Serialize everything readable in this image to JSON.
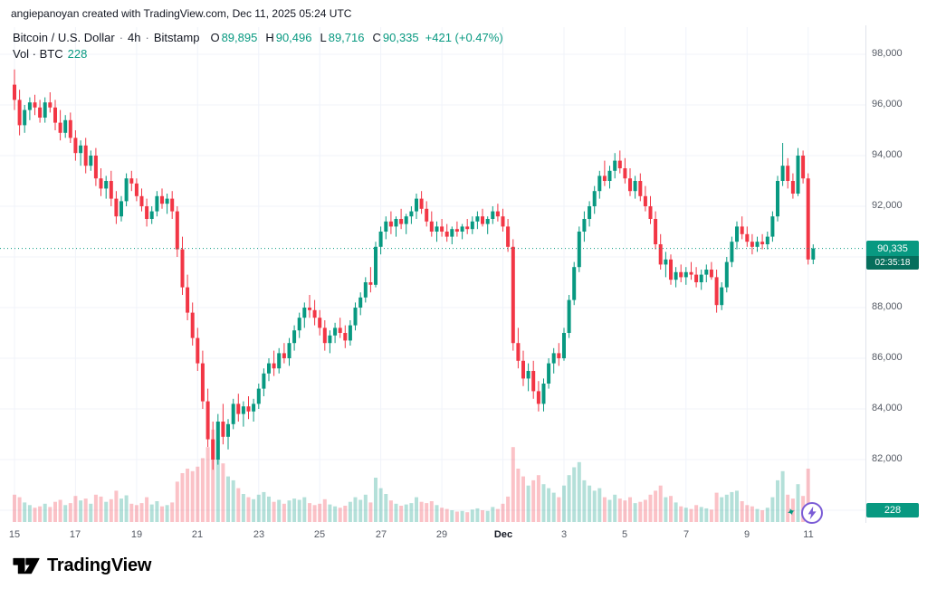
{
  "attribution": "angiepanoyan created with TradingView.com, Dec 11, 2025 05:24 UTC",
  "legend": {
    "title": "Bitcoin / U.S. Dollar",
    "sep1": "·",
    "interval": "4h",
    "sep2": "·",
    "exchange": "Bitstamp",
    "o_label": "O",
    "o": "89,895",
    "h_label": "H",
    "h": "90,496",
    "l_label": "L",
    "l": "89,716",
    "c_label": "C",
    "c": "90,335",
    "change": "+421 (+0.47%)",
    "vol_label": "Vol · BTC",
    "vol_value": "228"
  },
  "price_axis": {
    "labels": [
      "98,000",
      "96,000",
      "94,000",
      "92,000",
      "90,000",
      "88,000",
      "86,000",
      "84,000",
      "82,000",
      "80,000"
    ],
    "current_price": "90,335",
    "countdown": "02:35:18",
    "volume_badge": "228"
  },
  "logo": {
    "text": "TradingView"
  },
  "icons": {
    "flash": "lightning-bolt-circle",
    "sparkle_glyph": "✦"
  },
  "colors": {
    "up": "#089981",
    "down": "#f23645",
    "vol_up": "rgba(8,153,129,0.30)",
    "vol_down": "rgba(242,54,69,0.30)",
    "grid": "#f0f3fa",
    "axis_text": "#555a64",
    "badge_green": "#089981",
    "countdown_bg": "#066e5c"
  },
  "chart_data": {
    "type": "candlestick",
    "title": "Bitcoin / U.S. Dollar · 4h · Bitstamp",
    "interval": "4h",
    "volume_unit": "BTC",
    "last_price": 90335,
    "price_axis_ticks": [
      98000,
      96000,
      94000,
      92000,
      90000,
      88000,
      86000,
      84000,
      82000,
      80000
    ],
    "ylim": [
      79500,
      99000
    ],
    "legend_position": "top-left",
    "grid": true,
    "time_labels": [
      {
        "text": "15",
        "i": 0
      },
      {
        "text": "17",
        "i": 12
      },
      {
        "text": "19",
        "i": 24
      },
      {
        "text": "21",
        "i": 36
      },
      {
        "text": "23",
        "i": 48
      },
      {
        "text": "25",
        "i": 60
      },
      {
        "text": "27",
        "i": 72
      },
      {
        "text": "29",
        "i": 84
      },
      {
        "text": "Dec",
        "i": 96,
        "major": true
      },
      {
        "text": "3",
        "i": 108
      },
      {
        "text": "5",
        "i": 120
      },
      {
        "text": "7",
        "i": 132
      },
      {
        "text": "9",
        "i": 144
      },
      {
        "text": "11",
        "i": 156
      }
    ],
    "candles_format": [
      "open",
      "high",
      "low",
      "close",
      "volume"
    ],
    "candles": [
      [
        96800,
        97400,
        95800,
        96200,
        420
      ],
      [
        96200,
        96600,
        94800,
        95200,
        380
      ],
      [
        95200,
        96000,
        94900,
        95800,
        300
      ],
      [
        95800,
        96300,
        95400,
        96100,
        260
      ],
      [
        96100,
        96400,
        95600,
        95900,
        220
      ],
      [
        95900,
        96200,
        95300,
        95500,
        240
      ],
      [
        95500,
        96300,
        95300,
        96100,
        280
      ],
      [
        96100,
        96500,
        95700,
        95900,
        230
      ],
      [
        95900,
        96200,
        95000,
        95300,
        310
      ],
      [
        95300,
        95800,
        94600,
        94900,
        340
      ],
      [
        94900,
        95600,
        94700,
        95400,
        260
      ],
      [
        95400,
        95700,
        94500,
        94700,
        290
      ],
      [
        94700,
        95000,
        93800,
        94100,
        400
      ],
      [
        94100,
        94600,
        93600,
        94400,
        330
      ],
      [
        94400,
        94700,
        93300,
        93600,
        360
      ],
      [
        93600,
        94200,
        93400,
        94000,
        280
      ],
      [
        94000,
        94300,
        92800,
        93100,
        420
      ],
      [
        93100,
        93500,
        92400,
        92700,
        390
      ],
      [
        92700,
        93200,
        92300,
        93000,
        310
      ],
      [
        93000,
        93400,
        92000,
        92300,
        350
      ],
      [
        92300,
        92600,
        91300,
        91600,
        480
      ],
      [
        91600,
        92400,
        91400,
        92200,
        360
      ],
      [
        92200,
        93300,
        92000,
        93100,
        410
      ],
      [
        93100,
        93400,
        92600,
        92900,
        280
      ],
      [
        92900,
        93100,
        92200,
        92400,
        260
      ],
      [
        92400,
        92700,
        91800,
        92000,
        290
      ],
      [
        92000,
        92300,
        91200,
        91500,
        380
      ],
      [
        91500,
        92000,
        91300,
        91800,
        270
      ],
      [
        91800,
        92600,
        91600,
        92400,
        320
      ],
      [
        92400,
        92700,
        91900,
        92100,
        240
      ],
      [
        92100,
        92500,
        91700,
        92300,
        260
      ],
      [
        92300,
        92600,
        91500,
        91800,
        300
      ],
      [
        91800,
        92000,
        90000,
        90300,
        620
      ],
      [
        90300,
        90800,
        88500,
        88800,
        750
      ],
      [
        88800,
        89300,
        87500,
        87800,
        820
      ],
      [
        87800,
        88200,
        86500,
        86800,
        780
      ],
      [
        86800,
        87200,
        85500,
        85800,
        850
      ],
      [
        85800,
        86300,
        84000,
        84300,
        980
      ],
      [
        84300,
        84800,
        82500,
        82800,
        1150
      ],
      [
        82800,
        83500,
        81600,
        82000,
        1420
      ],
      [
        82000,
        83800,
        81800,
        83500,
        1250
      ],
      [
        83500,
        84200,
        82600,
        82900,
        900
      ],
      [
        82900,
        83600,
        82400,
        83400,
        700
      ],
      [
        83400,
        84400,
        83200,
        84200,
        640
      ],
      [
        84200,
        84600,
        83500,
        83800,
        520
      ],
      [
        83800,
        84300,
        83300,
        84100,
        430
      ],
      [
        84100,
        84500,
        83600,
        83900,
        380
      ],
      [
        83900,
        84400,
        83500,
        84200,
        350
      ],
      [
        84200,
        85000,
        84000,
        84800,
        420
      ],
      [
        84800,
        85600,
        84500,
        85400,
        460
      ],
      [
        85400,
        86000,
        85100,
        85800,
        390
      ],
      [
        85800,
        86300,
        85300,
        85600,
        310
      ],
      [
        85600,
        86400,
        85400,
        86200,
        340
      ],
      [
        86200,
        86600,
        85800,
        86000,
        280
      ],
      [
        86000,
        86800,
        85700,
        86600,
        330
      ],
      [
        86600,
        87300,
        86300,
        87100,
        360
      ],
      [
        87100,
        87800,
        86800,
        87600,
        340
      ],
      [
        87600,
        88200,
        87200,
        88000,
        380
      ],
      [
        88000,
        88500,
        87600,
        87900,
        290
      ],
      [
        87900,
        88300,
        87300,
        87600,
        260
      ],
      [
        87600,
        87900,
        86900,
        87200,
        280
      ],
      [
        87200,
        87500,
        86300,
        86600,
        350
      ],
      [
        86600,
        87100,
        86200,
        86900,
        270
      ],
      [
        86900,
        87400,
        86600,
        87200,
        240
      ],
      [
        87200,
        87600,
        86800,
        87000,
        220
      ],
      [
        87000,
        87300,
        86400,
        86700,
        250
      ],
      [
        86700,
        87500,
        86500,
        87300,
        310
      ],
      [
        87300,
        88200,
        87100,
        88000,
        380
      ],
      [
        88000,
        88600,
        87700,
        88400,
        340
      ],
      [
        88400,
        89200,
        88200,
        89000,
        420
      ],
      [
        89000,
        89600,
        88600,
        88900,
        300
      ],
      [
        88900,
        90600,
        88800,
        90400,
        680
      ],
      [
        90400,
        91200,
        90100,
        91000,
        520
      ],
      [
        91000,
        91600,
        90700,
        91400,
        430
      ],
      [
        91400,
        91800,
        90900,
        91200,
        330
      ],
      [
        91200,
        91600,
        90800,
        91500,
        280
      ],
      [
        91500,
        91900,
        91100,
        91300,
        250
      ],
      [
        91300,
        91700,
        90900,
        91600,
        270
      ],
      [
        91600,
        92000,
        91300,
        91800,
        290
      ],
      [
        91800,
        92500,
        91500,
        92300,
        380
      ],
      [
        92300,
        92600,
        91700,
        91900,
        310
      ],
      [
        91900,
        92200,
        91200,
        91400,
        290
      ],
      [
        91400,
        91800,
        90800,
        91000,
        320
      ],
      [
        91000,
        91400,
        90600,
        91200,
        260
      ],
      [
        91200,
        91500,
        90800,
        91000,
        220
      ],
      [
        91000,
        91300,
        90600,
        90800,
        200
      ],
      [
        90800,
        91200,
        90500,
        91100,
        180
      ],
      [
        91100,
        91400,
        90800,
        91000,
        160
      ],
      [
        91000,
        91300,
        90700,
        91200,
        170
      ],
      [
        91200,
        91500,
        90900,
        91100,
        150
      ],
      [
        91100,
        91600,
        90900,
        91400,
        190
      ],
      [
        91400,
        91800,
        91100,
        91600,
        210
      ],
      [
        91600,
        91900,
        91200,
        91300,
        180
      ],
      [
        91300,
        91600,
        90900,
        91500,
        170
      ],
      [
        91500,
        92000,
        91300,
        91800,
        230
      ],
      [
        91800,
        92100,
        91400,
        91600,
        200
      ],
      [
        91600,
        91900,
        91000,
        91200,
        280
      ],
      [
        91200,
        91500,
        90200,
        90400,
        390
      ],
      [
        90400,
        90700,
        86300,
        86600,
        1150
      ],
      [
        86600,
        87200,
        85600,
        85900,
        820
      ],
      [
        85900,
        86300,
        84900,
        85200,
        700
      ],
      [
        85200,
        85800,
        84700,
        85500,
        560
      ],
      [
        85500,
        85900,
        84400,
        84700,
        640
      ],
      [
        84700,
        85100,
        83900,
        84200,
        720
      ],
      [
        84200,
        85200,
        83900,
        85000,
        580
      ],
      [
        85000,
        86000,
        84800,
        85800,
        520
      ],
      [
        85800,
        86400,
        85400,
        86200,
        450
      ],
      [
        86200,
        86600,
        85700,
        86000,
        380
      ],
      [
        86000,
        87200,
        85900,
        87000,
        560
      ],
      [
        87000,
        88500,
        86800,
        88300,
        720
      ],
      [
        88300,
        89800,
        88100,
        89600,
        840
      ],
      [
        89600,
        91200,
        89400,
        91000,
        920
      ],
      [
        91000,
        91800,
        90600,
        91500,
        640
      ],
      [
        91500,
        92200,
        91200,
        92000,
        560
      ],
      [
        92000,
        92800,
        91700,
        92600,
        480
      ],
      [
        92600,
        93400,
        92300,
        93200,
        520
      ],
      [
        93200,
        93800,
        92800,
        93000,
        380
      ],
      [
        93000,
        93600,
        92700,
        93400,
        340
      ],
      [
        93400,
        94100,
        93100,
        93800,
        420
      ],
      [
        93800,
        94200,
        93300,
        93500,
        360
      ],
      [
        93500,
        93900,
        92900,
        93100,
        330
      ],
      [
        93100,
        93500,
        92400,
        92600,
        380
      ],
      [
        92600,
        93200,
        92300,
        93000,
        290
      ],
      [
        93000,
        93300,
        92200,
        92400,
        310
      ],
      [
        92400,
        92800,
        91800,
        92000,
        340
      ],
      [
        92000,
        92400,
        91300,
        91500,
        420
      ],
      [
        91500,
        91800,
        90300,
        90500,
        480
      ],
      [
        90500,
        90900,
        89500,
        89700,
        560
      ],
      [
        89700,
        90200,
        89200,
        89900,
        380
      ],
      [
        89900,
        90100,
        88900,
        89100,
        400
      ],
      [
        89100,
        89600,
        88800,
        89400,
        300
      ],
      [
        89400,
        89700,
        89000,
        89200,
        240
      ],
      [
        89200,
        89600,
        88900,
        89400,
        220
      ],
      [
        89400,
        89800,
        89100,
        89300,
        200
      ],
      [
        89300,
        89600,
        88800,
        89000,
        260
      ],
      [
        89000,
        89500,
        88700,
        89300,
        230
      ],
      [
        89300,
        89700,
        89000,
        89500,
        210
      ],
      [
        89500,
        89800,
        89100,
        89200,
        190
      ],
      [
        89200,
        89500,
        87800,
        88100,
        450
      ],
      [
        88100,
        89000,
        87900,
        88800,
        380
      ],
      [
        88800,
        90000,
        88600,
        89800,
        420
      ],
      [
        89800,
        90800,
        89600,
        90600,
        460
      ],
      [
        90600,
        91400,
        90300,
        91200,
        480
      ],
      [
        91200,
        91600,
        90700,
        90900,
        320
      ],
      [
        90900,
        91200,
        90400,
        90600,
        260
      ],
      [
        90600,
        90900,
        90100,
        90400,
        240
      ],
      [
        90400,
        90800,
        90200,
        90600,
        200
      ],
      [
        90600,
        90900,
        90300,
        90500,
        180
      ],
      [
        90500,
        91000,
        90300,
        90800,
        220
      ],
      [
        90800,
        91800,
        90600,
        91600,
        380
      ],
      [
        91600,
        93200,
        91400,
        93000,
        640
      ],
      [
        93000,
        94500,
        92800,
        93600,
        780
      ],
      [
        93600,
        93900,
        92700,
        93000,
        420
      ],
      [
        93000,
        93300,
        92300,
        92500,
        360
      ],
      [
        92500,
        94300,
        92400,
        94000,
        580
      ],
      [
        94000,
        94200,
        92900,
        93100,
        400
      ],
      [
        93100,
        93300,
        89700,
        89900,
        820
      ],
      [
        89895,
        90496,
        89716,
        90335,
        228
      ]
    ]
  }
}
